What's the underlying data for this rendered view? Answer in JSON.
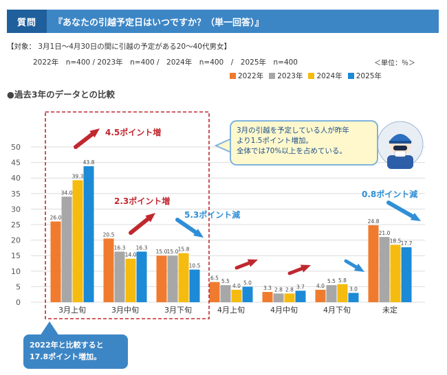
{
  "question": {
    "tag": "質問",
    "text": "『あなたの引越予定日はいつですか？（単一回答）』"
  },
  "meta": {
    "target": "【対象： 3月1日～4月30日の間に引越の予定がある20～40代男女】",
    "samples": "2022年　n=400 / 2023年　n=400 /　2024年　n=400　/　2025年　n=400",
    "unit": "＜単位：％＞"
  },
  "subtitle": "●過去3年のデータとの比較",
  "colors": {
    "2022年": "#f07b2e",
    "2023年": "#a7a7a7",
    "2024年": "#f6bb0f",
    "2025年": "#1c8ad6",
    "red": "#c0282f",
    "blue": "#2f8fd6"
  },
  "chart_data": {
    "type": "bar",
    "categories": [
      "3月上旬",
      "3月中旬",
      "3月下旬",
      "4月上旬",
      "4月中旬",
      "4月下旬",
      "未定"
    ],
    "series": [
      {
        "name": "2022年",
        "values": [
          26.0,
          20.5,
          15.0,
          6.5,
          3.3,
          4.0,
          24.8
        ]
      },
      {
        "name": "2023年",
        "values": [
          34.0,
          16.3,
          15.0,
          5.5,
          2.8,
          5.5,
          21.0
        ]
      },
      {
        "name": "2024年",
        "values": [
          39.3,
          14.0,
          15.8,
          4.0,
          2.8,
          5.8,
          18.5
        ]
      },
      {
        "name": "2025年",
        "values": [
          43.8,
          16.3,
          10.5,
          5.0,
          3.7,
          3.0,
          17.7
        ]
      }
    ],
    "data_labels": [
      [
        "26.0",
        "20.5",
        "15.0",
        "6.5",
        "3.3",
        "4.0",
        "24.8"
      ],
      [
        "34.0",
        "16.3",
        "15.0",
        "5.5",
        "2.8",
        "5.5",
        "21.0"
      ],
      [
        "39.3",
        "14.0",
        "15.8",
        "4.0",
        "2.8",
        "5.8",
        "18.5"
      ],
      [
        "43.8",
        "16.3",
        "10.5",
        "5.0",
        "3.7",
        "3.0",
        "17.7"
      ]
    ],
    "ylim": [
      0,
      50
    ],
    "yticks": [
      0,
      5,
      10,
      15,
      20,
      25,
      30,
      35,
      40,
      45,
      50
    ],
    "legend": "top-right",
    "annotations": {
      "march_early": "4.5ポイント増",
      "march_mid": "2.3ポイント増",
      "march_late": "5.3ポイント減",
      "undecided": "0.8ポイント減"
    }
  },
  "bubble": {
    "lines": [
      "3月の引越を予定している人が昨年",
      "より1.5ポイント増加。",
      "全体では70%以上を占めている。"
    ]
  },
  "callout": {
    "lines": [
      "2022年と比較すると",
      "17.8ポイント増加。"
    ]
  }
}
